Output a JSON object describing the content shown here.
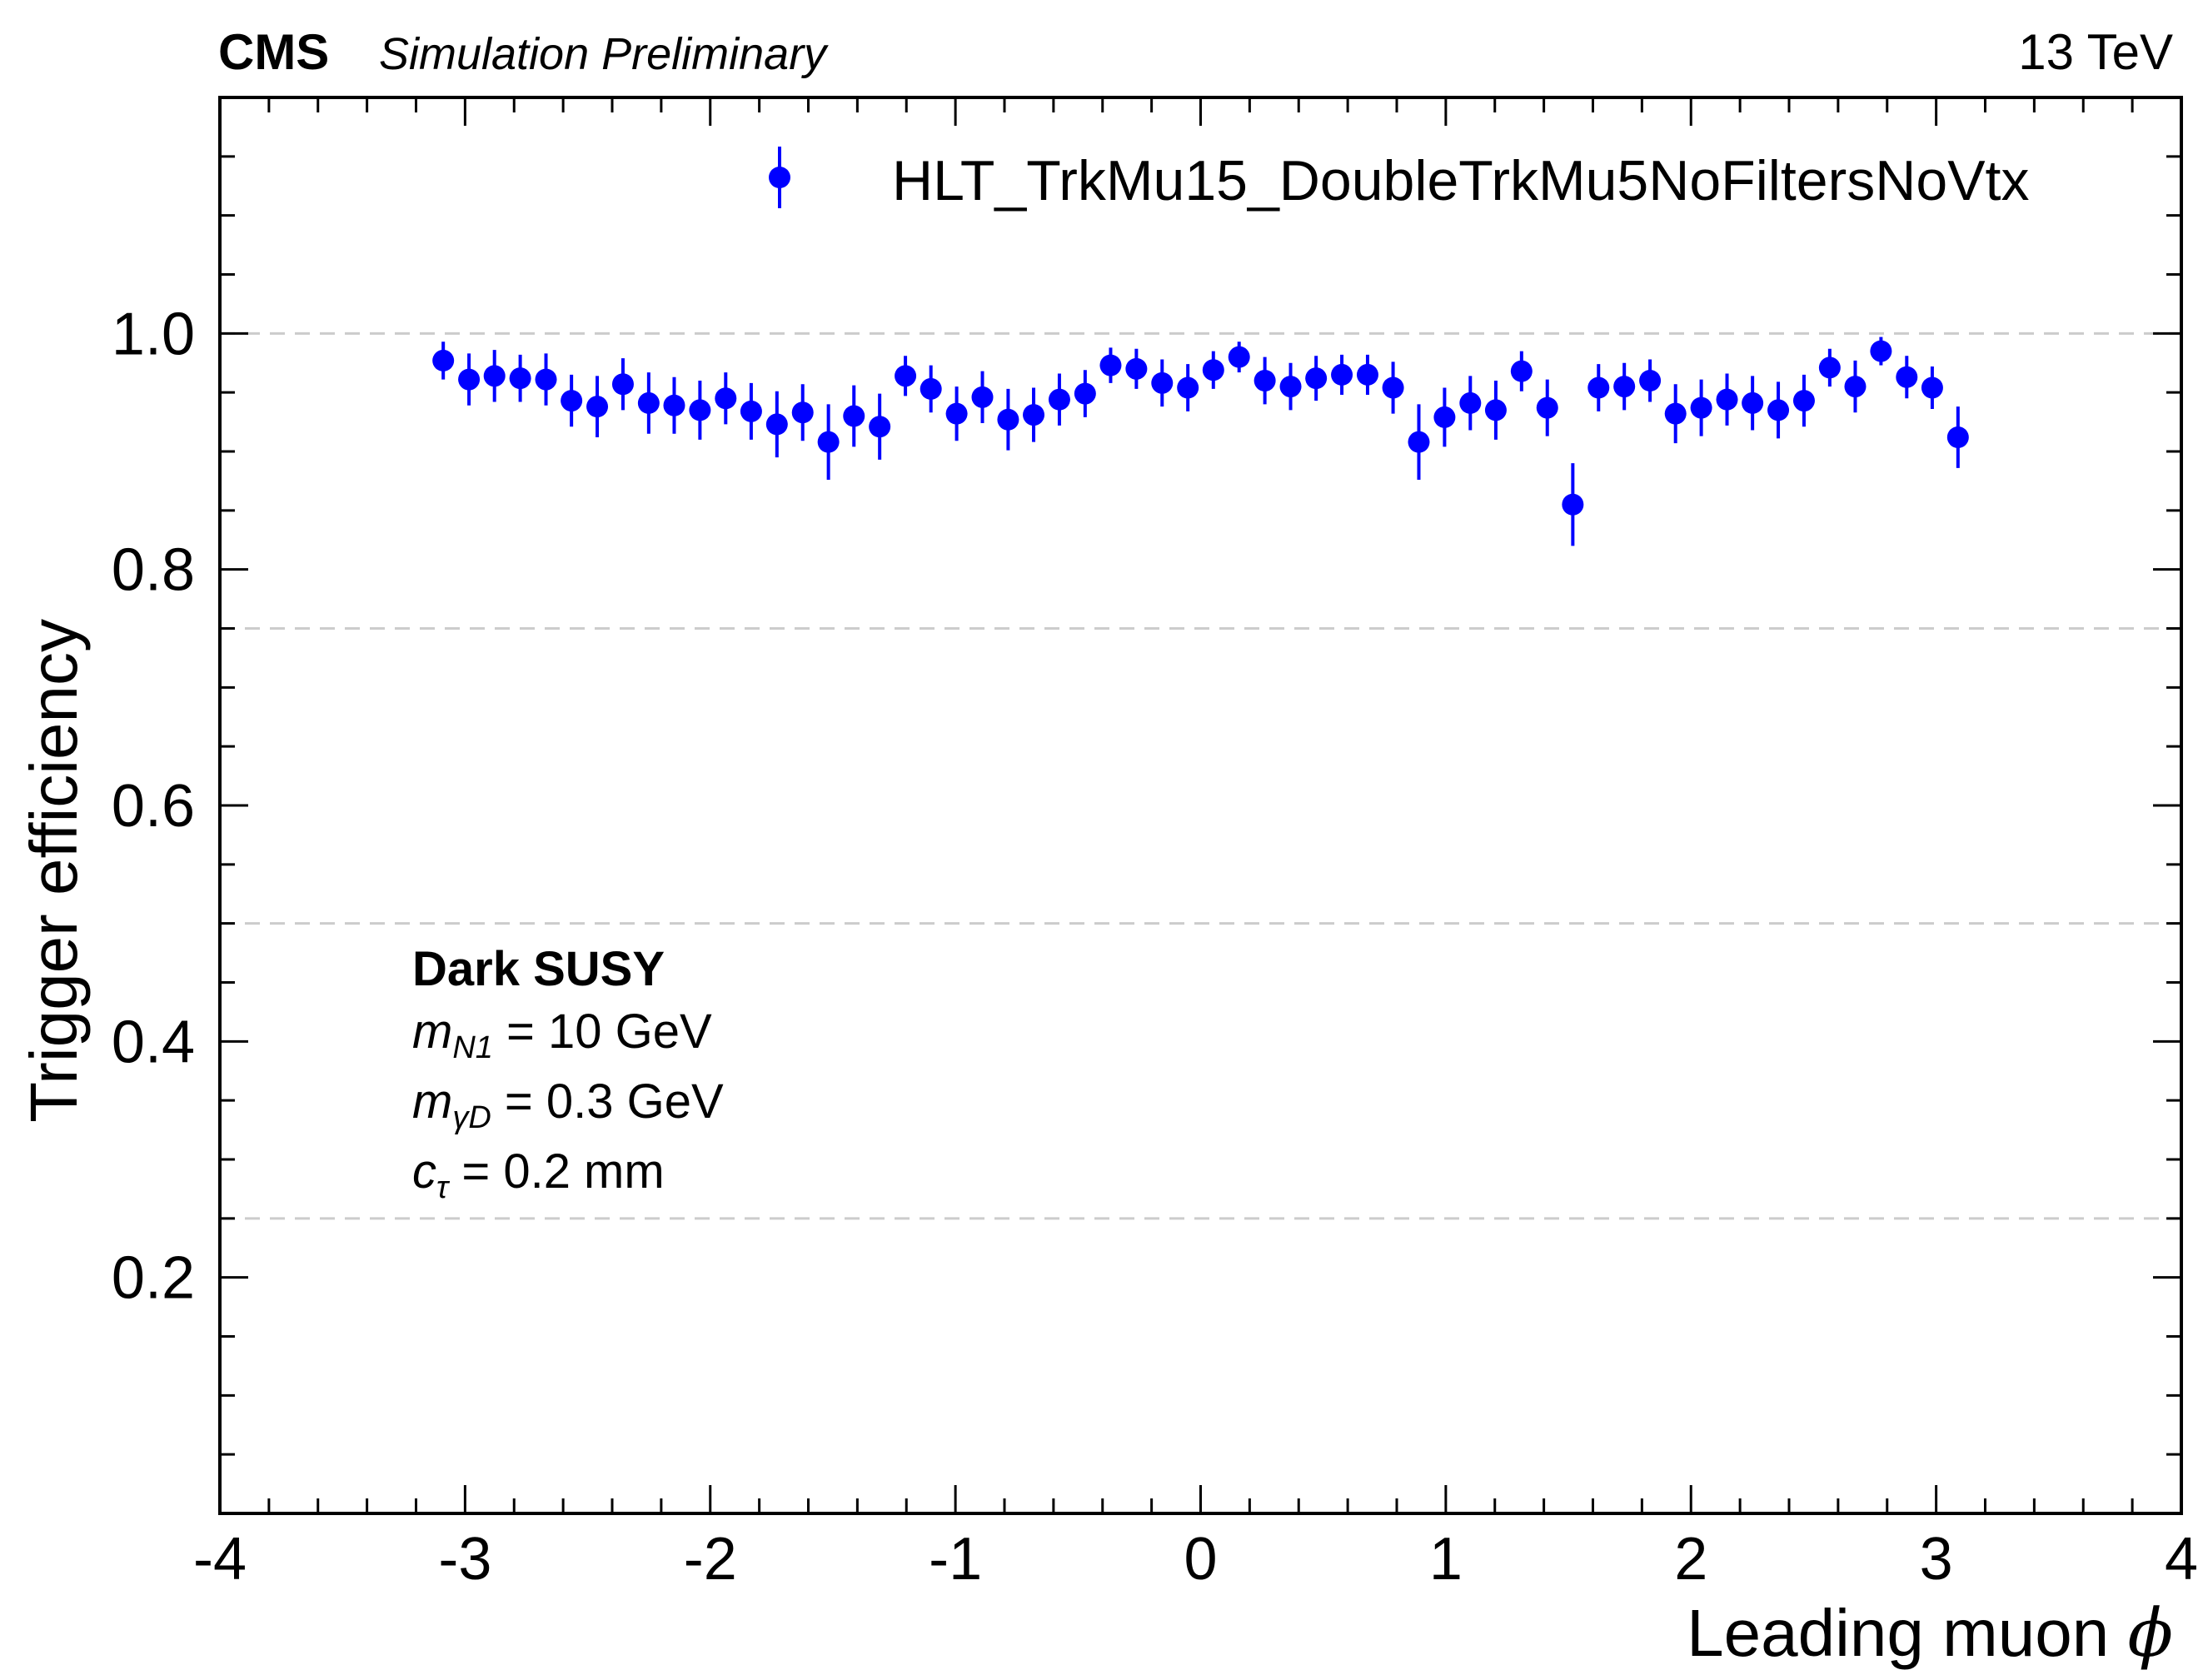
{
  "header": {
    "experiment": "CMS",
    "status": "Simulation Preliminary",
    "energy": "13 TeV"
  },
  "chart_data": {
    "type": "scatter",
    "xlabel_text": "Leading muon ",
    "xlabel_symbol": "ϕ",
    "ylabel": "Trigger efficiency",
    "xlim": [
      -4,
      4
    ],
    "ylim": [
      0,
      1.2
    ],
    "x_ticks": [
      -4,
      -3,
      -2,
      -1,
      0,
      1,
      2,
      3,
      4
    ],
    "x_tick_labels": [
      "-4",
      "-3",
      "-2",
      "-1",
      "0",
      "1",
      "2",
      "3",
      "4"
    ],
    "y_ticks": [
      0.2,
      0.4,
      0.6,
      0.8,
      1.0
    ],
    "y_tick_labels": [
      "0.2",
      "0.4",
      "0.6",
      "0.8",
      "1.0"
    ],
    "dashed_gridlines_y": [
      0.25,
      0.5,
      0.75,
      1.0
    ],
    "legend_position": "top-right",
    "marker_color": "#0000ff",
    "grid_color": "#cccccc",
    "series": [
      {
        "name": "HLT_TrkMu15_DoubleTrkMu5NoFiltersNoVtx",
        "x": [
          -3.089,
          -2.984,
          -2.88,
          -2.775,
          -2.67,
          -2.566,
          -2.461,
          -2.356,
          -2.251,
          -2.147,
          -2.042,
          -1.937,
          -1.833,
          -1.728,
          -1.623,
          -1.518,
          -1.414,
          -1.309,
          -1.204,
          -1.1,
          -0.995,
          -0.89,
          -0.785,
          -0.681,
          -0.576,
          -0.471,
          -0.367,
          -0.262,
          -0.157,
          -0.052,
          0.052,
          0.157,
          0.262,
          0.367,
          0.471,
          0.576,
          0.681,
          0.785,
          0.89,
          0.995,
          1.1,
          1.204,
          1.309,
          1.414,
          1.518,
          1.623,
          1.728,
          1.833,
          1.937,
          2.042,
          2.147,
          2.251,
          2.356,
          2.461,
          2.566,
          2.67,
          2.775,
          2.88,
          2.984,
          3.089
        ],
        "y": [
          0.977,
          0.961,
          0.964,
          0.962,
          0.961,
          0.943,
          0.938,
          0.957,
          0.941,
          0.939,
          0.935,
          0.945,
          0.934,
          0.923,
          0.933,
          0.908,
          0.93,
          0.921,
          0.964,
          0.953,
          0.932,
          0.946,
          0.927,
          0.931,
          0.944,
          0.949,
          0.973,
          0.97,
          0.958,
          0.954,
          0.969,
          0.98,
          0.96,
          0.955,
          0.962,
          0.965,
          0.965,
          0.954,
          0.908,
          0.929,
          0.941,
          0.935,
          0.968,
          0.937,
          0.855,
          0.954,
          0.955,
          0.96,
          0.932,
          0.937,
          0.944,
          0.941,
          0.935,
          0.943,
          0.971,
          0.955,
          0.985,
          0.963,
          0.954,
          0.912
        ],
        "yerr": [
          0.016,
          0.022,
          0.022,
          0.02,
          0.022,
          0.022,
          0.026,
          0.022,
          0.026,
          0.024,
          0.025,
          0.022,
          0.024,
          0.028,
          0.024,
          0.032,
          0.026,
          0.028,
          0.017,
          0.02,
          0.023,
          0.022,
          0.026,
          0.023,
          0.022,
          0.02,
          0.015,
          0.017,
          0.02,
          0.02,
          0.016,
          0.013,
          0.02,
          0.02,
          0.019,
          0.017,
          0.017,
          0.022,
          0.032,
          0.025,
          0.023,
          0.025,
          0.017,
          0.024,
          0.035,
          0.02,
          0.02,
          0.018,
          0.025,
          0.024,
          0.022,
          0.023,
          0.024,
          0.022,
          0.016,
          0.022,
          0.012,
          0.018,
          0.018,
          0.026
        ]
      }
    ],
    "annotations": {
      "model": "Dark SUSY",
      "param1_symbol": "m",
      "param1_sub": "N1",
      "param1_value": " = 10 GeV",
      "param2_symbol": "m",
      "param2_sub": "γD",
      "param2_value": " = 0.3 GeV",
      "param3_symbol": "c",
      "param3_sub": "τ",
      "param3_value": " = 0.2 mm"
    }
  }
}
